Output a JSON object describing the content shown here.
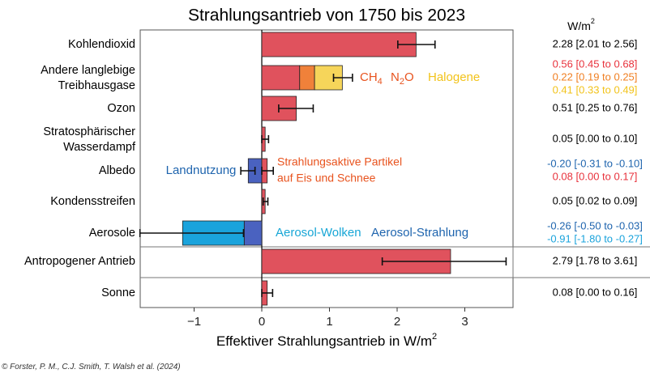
{
  "chart_data": {
    "type": "bar",
    "title": "Strahlungsantrieb von 1750 bis 2023",
    "xlabel": "Effektiver Strahlungsantrieb in W/m²",
    "xlim": [
      -1.77,
      3.7
    ],
    "xticks": [
      {
        "value": -1,
        "label": "−1"
      },
      {
        "value": 0,
        "label": "0"
      },
      {
        "value": 1,
        "label": "1"
      },
      {
        "value": 2,
        "label": "2"
      },
      {
        "value": 3,
        "label": "3"
      }
    ],
    "unit_header": "W/m²",
    "colors": {
      "red": "#e0525d",
      "orange": "#f0813a",
      "yellow": "#f6d55a",
      "darkblue": "#4a62c0",
      "lightblue": "#1aa3dc",
      "label_blue": "#1e64ae",
      "label_orange": "#e8531e",
      "label_yellow": "#f2c31b",
      "label_cyan": "#17a6d6",
      "ci_red": "#e8323c",
      "ci_orange": "#f07f22",
      "ci_yellow": "#f2c31b",
      "ci_blue": "#1e64ae",
      "ci_cyan": "#1aa3dc"
    },
    "rows": [
      {
        "label": [
          "Kohlendioxid"
        ],
        "segments": [
          {
            "start": 0,
            "end": 2.28,
            "color": "red"
          }
        ],
        "error": [
          2.01,
          2.56
        ],
        "values": [
          {
            "text": "2.28 [2.01 to 2.56]",
            "color": "black"
          }
        ]
      },
      {
        "label": [
          "Andere langlebige",
          "Treibhausgase"
        ],
        "segments": [
          {
            "start": 0,
            "end": 0.56,
            "color": "red"
          },
          {
            "start": 0.56,
            "end": 0.78,
            "color": "orange"
          },
          {
            "start": 0.78,
            "end": 1.19,
            "color": "yellow"
          }
        ],
        "error": [
          1.06,
          1.34
        ],
        "values": [
          {
            "text": "0.56 [0.45 to 0.68]",
            "color": "ci_red"
          },
          {
            "text": "0.22 [0.19 to 0.25]",
            "color": "ci_orange"
          },
          {
            "text": "0.41 [0.33 to 0.49]",
            "color": "ci_yellow"
          }
        ]
      },
      {
        "label": [
          "Ozon"
        ],
        "segments": [
          {
            "start": 0,
            "end": 0.51,
            "color": "red"
          }
        ],
        "error": [
          0.25,
          0.76
        ],
        "values": [
          {
            "text": "0.51 [0.25 to 0.76]",
            "color": "black"
          }
        ]
      },
      {
        "label": [
          "Stratosphärischer",
          "Wasserdampf"
        ],
        "segments": [
          {
            "start": 0,
            "end": 0.05,
            "color": "red"
          }
        ],
        "error": [
          0.0,
          0.1
        ],
        "values": [
          {
            "text": "0.05 [0.00 to 0.10]",
            "color": "black"
          }
        ]
      },
      {
        "label": [
          "Albedo"
        ],
        "segments": [
          {
            "start": -0.2,
            "end": 0,
            "color": "darkblue"
          },
          {
            "start": 0,
            "end": 0.08,
            "color": "red"
          }
        ],
        "errors": [
          [
            -0.31,
            -0.1
          ],
          [
            0.0,
            0.17
          ]
        ],
        "values": [
          {
            "text": "-0.20 [-0.31 to -0.10]",
            "color": "ci_blue"
          },
          {
            "text": "0.08 [0.00 to 0.17]",
            "color": "ci_red"
          }
        ]
      },
      {
        "label": [
          "Kondensstreifen"
        ],
        "segments": [
          {
            "start": 0,
            "end": 0.05,
            "color": "red"
          }
        ],
        "error": [
          0.02,
          0.09
        ],
        "values": [
          {
            "text": "0.05 [0.02 to 0.09]",
            "color": "black"
          }
        ]
      },
      {
        "label": [
          "Aerosole"
        ],
        "segments": [
          {
            "start": -0.26,
            "end": 0,
            "color": "darkblue"
          },
          {
            "start": -1.17,
            "end": -0.26,
            "color": "lightblue"
          }
        ],
        "errors": [
          [
            -1.8,
            -0.27
          ]
        ],
        "values": [
          {
            "text": "-0.26 [-0.50 to -0.03]",
            "color": "ci_blue"
          },
          {
            "text": "-0.91 [-1.80 to -0.27]",
            "color": "ci_cyan"
          }
        ]
      },
      {
        "label": [
          "Antropogener Antrieb"
        ],
        "segments": [
          {
            "start": 0,
            "end": 2.79,
            "color": "red"
          }
        ],
        "error": [
          1.78,
          3.61
        ],
        "values": [
          {
            "text": "2.79 [1.78 to 3.61]",
            "color": "black"
          }
        ],
        "boxed": true
      },
      {
        "label": [
          "Sonne"
        ],
        "segments": [
          {
            "start": 0,
            "end": 0.08,
            "color": "red"
          }
        ],
        "error": [
          0.0,
          0.16
        ],
        "values": [
          {
            "text": "0.08 [0.00 to 0.16]",
            "color": "black"
          }
        ],
        "boxed": true
      }
    ],
    "annotations": {
      "ch4": {
        "base": "CH",
        "sub": "4",
        "color": "label_orange"
      },
      "n2o": {
        "base": "N",
        "sub": "2",
        "rest": "O",
        "color": "label_orange"
      },
      "halogene": {
        "text": "Halogene",
        "color": "label_yellow"
      },
      "landnutzung": {
        "text": "Landnutzung",
        "color": "label_blue"
      },
      "partikel": {
        "lines": [
          "Strahlungsaktive Partikel",
          "auf Eis und Schnee"
        ],
        "color": "label_orange"
      },
      "aerosol_wolken": {
        "text": "Aerosol-Wolken",
        "color": "label_cyan"
      },
      "aerosol_strahlung": {
        "text": "Aerosol-Strahlung",
        "color": "label_blue"
      }
    }
  },
  "credit": "© Forster, P. M., C.J. Smith, T. Walsh et al. (2024)"
}
